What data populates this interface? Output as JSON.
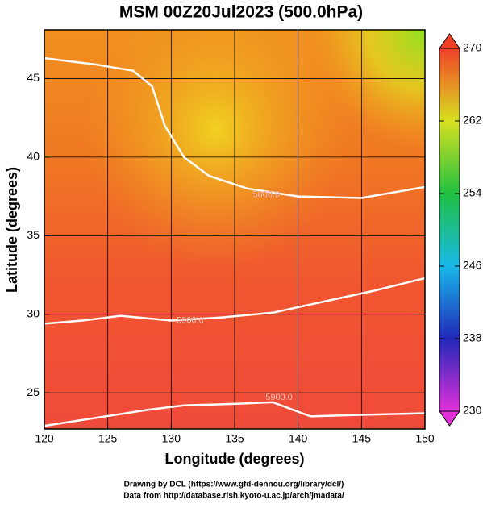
{
  "chart_data": {
    "type": "contour-map",
    "title": "MSM 00Z20Jul2023 (500.0hPa)",
    "x_label": "Longitude (degrees)",
    "y_label": "Latitude  (degrees)",
    "xlim": [
      120,
      150
    ],
    "ylim": [
      22.7,
      48.1
    ],
    "xticks": [
      120,
      125,
      130,
      135,
      140,
      145,
      150
    ],
    "yticks": [
      25,
      30,
      35,
      40,
      45
    ],
    "grid": true,
    "contours": [
      {
        "level": 5800,
        "label": "5800.0",
        "label_at": [
          137.5,
          37.6
        ],
        "lon": [
          120,
          124,
          127,
          128.5,
          129.5,
          131,
          133,
          136,
          140,
          145,
          150
        ],
        "lat": [
          46.3,
          45.9,
          45.5,
          44.5,
          42,
          40,
          38.8,
          38,
          37.5,
          37.4,
          38.1
        ]
      },
      {
        "level": 5900,
        "label": "5900.0",
        "label_at": [
          131.5,
          29.6
        ],
        "lon": [
          120,
          123,
          126,
          130,
          134,
          138,
          142,
          146,
          150
        ],
        "lat": [
          29.4,
          29.6,
          29.9,
          29.6,
          29.8,
          30.1,
          30.8,
          31.5,
          32.3
        ]
      },
      {
        "level": 5900,
        "label": "5900.0",
        "label_at": [
          138.5,
          24.7
        ],
        "lon": [
          120,
          124,
          128,
          131,
          135,
          138,
          141,
          145,
          150
        ],
        "lat": [
          22.9,
          23.4,
          23.9,
          24.2,
          24.3,
          24.4,
          23.5,
          23.6,
          23.7
        ]
      }
    ],
    "colorbar": {
      "lim": [
        230,
        270
      ],
      "ticks": [
        230,
        238,
        246,
        254,
        262,
        270
      ],
      "colors": [
        "#e030d8",
        "#2028b8",
        "#18b8e8",
        "#20c040",
        "#d8e020",
        "#f04028"
      ]
    },
    "credits": [
      "Drawing by DCL (https://www.gfd-dennou.org/library/dcl/)",
      "Data from http://database.rish.kyoto-u.ac.jp/arch/jmadata/"
    ]
  }
}
